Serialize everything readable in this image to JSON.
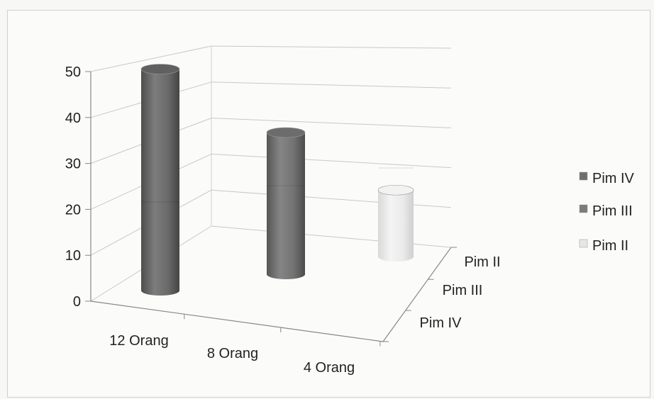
{
  "chart_data": {
    "type": "bar",
    "title": "",
    "xlabel": "",
    "ylabel": "",
    "ylim": [
      0,
      50
    ],
    "y_ticks": [
      "0",
      "10",
      "20",
      "30",
      "40",
      "50"
    ],
    "categories": [
      "12 Orang",
      "8 Orang",
      "4 Orang"
    ],
    "depth_categories": [
      "Pim IV",
      "Pim III",
      "Pim II"
    ],
    "series": [
      {
        "name": "Pim IV",
        "values": [
          50,
          null,
          null
        ],
        "color": "#6e6e6e"
      },
      {
        "name": "Pim III",
        "values": [
          null,
          32,
          null
        ],
        "color": "#7b7b7b"
      },
      {
        "name": "Pim II",
        "values": [
          null,
          null,
          15
        ],
        "color": "#e6e6e6"
      }
    ],
    "legend": {
      "position": "right",
      "items": [
        "Pim IV",
        "Pim III",
        "Pim II"
      ]
    },
    "grid": true
  }
}
